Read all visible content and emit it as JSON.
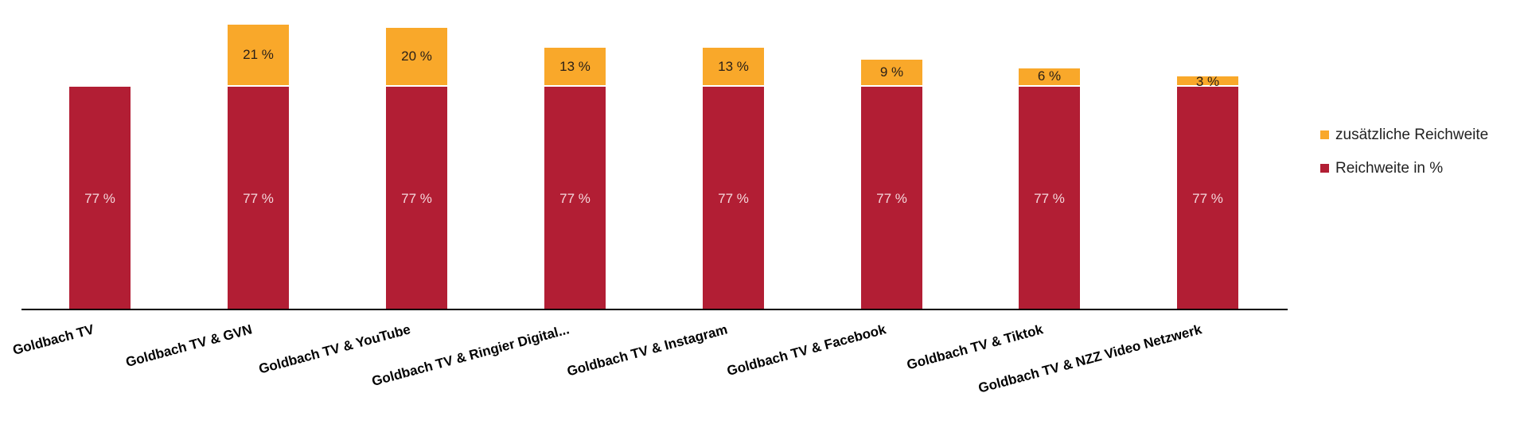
{
  "chart_data": {
    "type": "bar",
    "stacked": true,
    "title": "",
    "xlabel": "",
    "ylabel": "",
    "ylim": [
      0,
      100
    ],
    "grid": false,
    "legend_position": "right",
    "categories": [
      "Goldbach TV",
      "Goldbach TV & GVN",
      "Goldbach TV & YouTube",
      "Goldbach TV & Ringier Digital...",
      "Goldbach TV & Instagram",
      "Goldbach TV & Facebook",
      "Goldbach TV & Tiktok",
      "Goldbach TV & NZZ Video Netzwerk"
    ],
    "series": [
      {
        "name": "Reichweite in %",
        "color": "#b21e34",
        "values": [
          77,
          77,
          77,
          77,
          77,
          77,
          77,
          77
        ],
        "labels": [
          "77 %",
          "77 %",
          "77 %",
          "77 %",
          "77 %",
          "77 %",
          "77 %",
          "77 %"
        ]
      },
      {
        "name": "zusätzliche Reichweite",
        "color": "#f9a82a",
        "values": [
          0,
          21,
          20,
          13,
          13,
          9,
          6,
          3
        ],
        "labels": [
          "",
          "21 %",
          "20 %",
          "13 %",
          "13 %",
          "9 %",
          "6 %",
          "3 %"
        ]
      }
    ]
  },
  "legend": {
    "items": [
      {
        "label": "zusätzliche Reichweite",
        "color": "#f9a82a"
      },
      {
        "label": "Reichweite in %",
        "color": "#b21e34"
      }
    ]
  }
}
